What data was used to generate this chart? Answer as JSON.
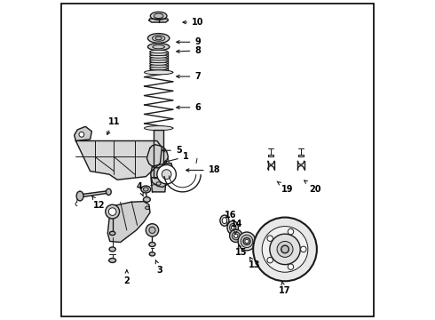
{
  "background_color": "#ffffff",
  "border_color": "#000000",
  "text_color": "#000000",
  "fig_width": 4.9,
  "fig_height": 3.6,
  "dpi": 100,
  "line_color": "#1a1a1a",
  "label_fontsize": 7.0,
  "label_fontweight": "bold",
  "label_specs": [
    [
      10,
      0.38,
      0.932,
      0.438,
      0.932
    ],
    [
      9,
      0.36,
      0.87,
      0.438,
      0.87
    ],
    [
      8,
      0.36,
      0.84,
      0.438,
      0.843
    ],
    [
      7,
      0.36,
      0.762,
      0.438,
      0.762
    ],
    [
      6,
      0.36,
      0.665,
      0.438,
      0.665
    ],
    [
      5,
      0.315,
      0.53,
      0.378,
      0.53
    ],
    [
      11,
      0.148,
      0.57,
      0.175,
      0.62
    ],
    [
      1,
      0.32,
      0.49,
      0.4,
      0.51
    ],
    [
      18,
      0.39,
      0.468,
      0.49,
      0.468
    ],
    [
      4,
      0.27,
      0.378,
      0.255,
      0.415
    ],
    [
      12,
      0.1,
      0.395,
      0.128,
      0.358
    ],
    [
      2,
      0.215,
      0.158,
      0.215,
      0.122
    ],
    [
      3,
      0.305,
      0.188,
      0.318,
      0.155
    ],
    [
      16,
      0.53,
      0.295,
      0.54,
      0.328
    ],
    [
      14,
      0.555,
      0.265,
      0.56,
      0.298
    ],
    [
      15,
      0.565,
      0.238,
      0.575,
      0.21
    ],
    [
      13,
      0.6,
      0.198,
      0.615,
      0.172
    ],
    [
      17,
      0.7,
      0.128,
      0.71,
      0.09
    ],
    [
      19,
      0.68,
      0.438,
      0.72,
      0.408
    ],
    [
      20,
      0.77,
      0.438,
      0.808,
      0.408
    ]
  ]
}
